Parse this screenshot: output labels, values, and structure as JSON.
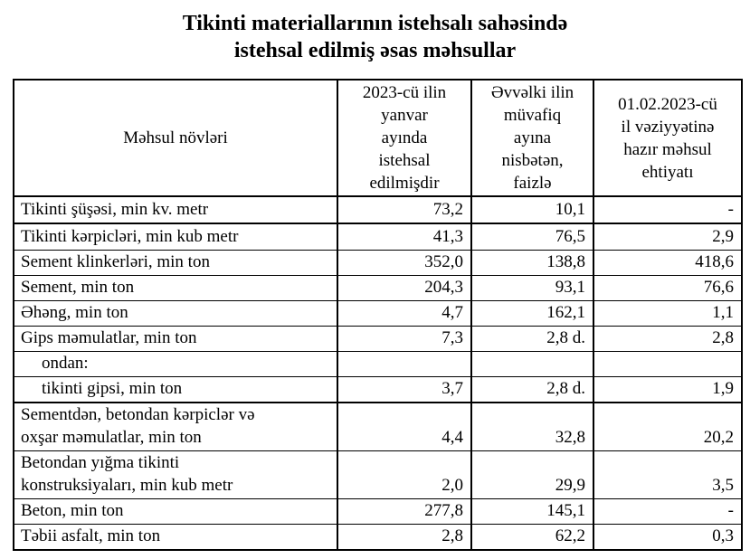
{
  "title": "Tikinti materiallarının istehsalı sahəsində\nistehsal edilmiş əsas məhsullar",
  "colors": {
    "text": "#000000",
    "background": "#ffffff",
    "border": "#000000"
  },
  "table": {
    "header": {
      "product": "Məhsul növləri",
      "produced": "2023-cü ilin\nyanvar\nayında\nistehsal\nedilmişdir",
      "percent": "Əvvəlki ilin\nmüvafiq\nayına\nnisbətən,\nfaizlə",
      "stock": "01.02.2023-cü\nil vəziyyətinə\nhazır məhsul\nehtiyatı"
    },
    "rows": [
      {
        "name": "Tikinti şüşəsi, min kv. metr",
        "produced": "73,2",
        "percent": "10,1",
        "stock": "-"
      },
      {
        "name": "Tikinti kərpicləri, min kub metr",
        "produced": "41,3",
        "percent": "76,5",
        "stock": "2,9"
      },
      {
        "name": "Sement klinkerləri, min ton",
        "produced": "352,0",
        "percent": "138,8",
        "stock": "418,6"
      },
      {
        "name": "Sement, min ton",
        "produced": "204,3",
        "percent": "93,1",
        "stock": "76,6"
      },
      {
        "name": "Əhəng, min ton",
        "produced": "4,7",
        "percent": "162,1",
        "stock": "1,1"
      },
      {
        "name": "Gips məmulatlar, min ton",
        "produced": "7,3",
        "percent": "2,8 d.",
        "stock": "2,8"
      },
      {
        "name": "ondan:",
        "produced": "",
        "percent": "",
        "stock": ""
      },
      {
        "name": "tikinti gipsi, min ton",
        "produced": "3,7",
        "percent": "2,8 d.",
        "stock": "1,9"
      },
      {
        "name": "Sementdən, betondan kərpiclər və\noxşar məmulatlar, min ton",
        "produced": "4,4",
        "percent": "32,8",
        "stock": "20,2"
      },
      {
        "name": "Betondan yığma tikinti\nkonstruksiyaları, min kub metr",
        "produced": "2,0",
        "percent": "29,9",
        "stock": "3,5"
      },
      {
        "name": "Beton, min ton",
        "produced": "277,8",
        "percent": "145,1",
        "stock": "-"
      },
      {
        "name": "Təbii asfalt, min ton",
        "produced": "2,8",
        "percent": "62,2",
        "stock": "0,3"
      }
    ]
  }
}
